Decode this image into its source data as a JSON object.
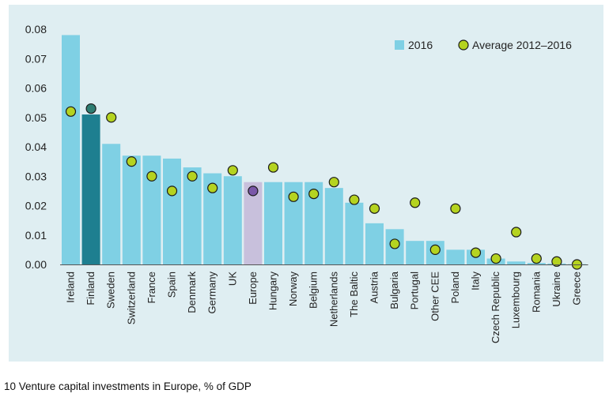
{
  "caption": "10 Venture capital investments in Europe, % of GDP",
  "colors": {
    "bar": "#7fd0e4",
    "bar_finland": "#1e7f90",
    "bar_europe": "#c8c0dc",
    "dot": "#b5d320",
    "dot_finland": "#2e7d72",
    "dot_europe": "#7a58a8",
    "panel": "#dfeef2"
  },
  "chart_data": {
    "type": "bar",
    "categories": [
      "Ireland",
      "Finland",
      "Sweden",
      "Switzerland",
      "France",
      "Spain",
      "Denmark",
      "Germany",
      "UK",
      "Europe",
      "Hungary",
      "Norway",
      "Belgium",
      "Netherlands",
      "The Baltic",
      "Austria",
      "Bulgaria",
      "Portugal",
      "Other CEE",
      "Poland",
      "Italy",
      "Czech Republic",
      "Luxembourg",
      "Romania",
      "Ukraine",
      "Greece"
    ],
    "series": [
      {
        "name": "2016",
        "kind": "bar",
        "values": [
          0.078,
          0.051,
          0.041,
          0.037,
          0.037,
          0.036,
          0.033,
          0.031,
          0.03,
          0.028,
          0.028,
          0.028,
          0.028,
          0.026,
          0.021,
          0.014,
          0.012,
          0.008,
          0.008,
          0.005,
          0.005,
          0.002,
          0.001,
          0.0005,
          0.0003,
          0.0001
        ]
      },
      {
        "name": "Average 2012–2016",
        "kind": "scatter",
        "values": [
          0.052,
          0.053,
          0.05,
          0.035,
          0.03,
          0.025,
          0.03,
          0.026,
          0.032,
          0.025,
          0.033,
          0.023,
          0.024,
          0.028,
          0.022,
          0.019,
          0.007,
          0.021,
          0.005,
          0.019,
          0.004,
          0.002,
          0.011,
          0.002,
          0.001,
          0.0
        ]
      }
    ],
    "title": "",
    "xlabel": "",
    "ylabel": "",
    "ylim": [
      0,
      0.08
    ],
    "yticks": [
      "0.00",
      "0.01",
      "0.02",
      "0.03",
      "0.04",
      "0.05",
      "0.06",
      "0.07",
      "0.08"
    ],
    "grid": false,
    "legend": "top-right"
  }
}
